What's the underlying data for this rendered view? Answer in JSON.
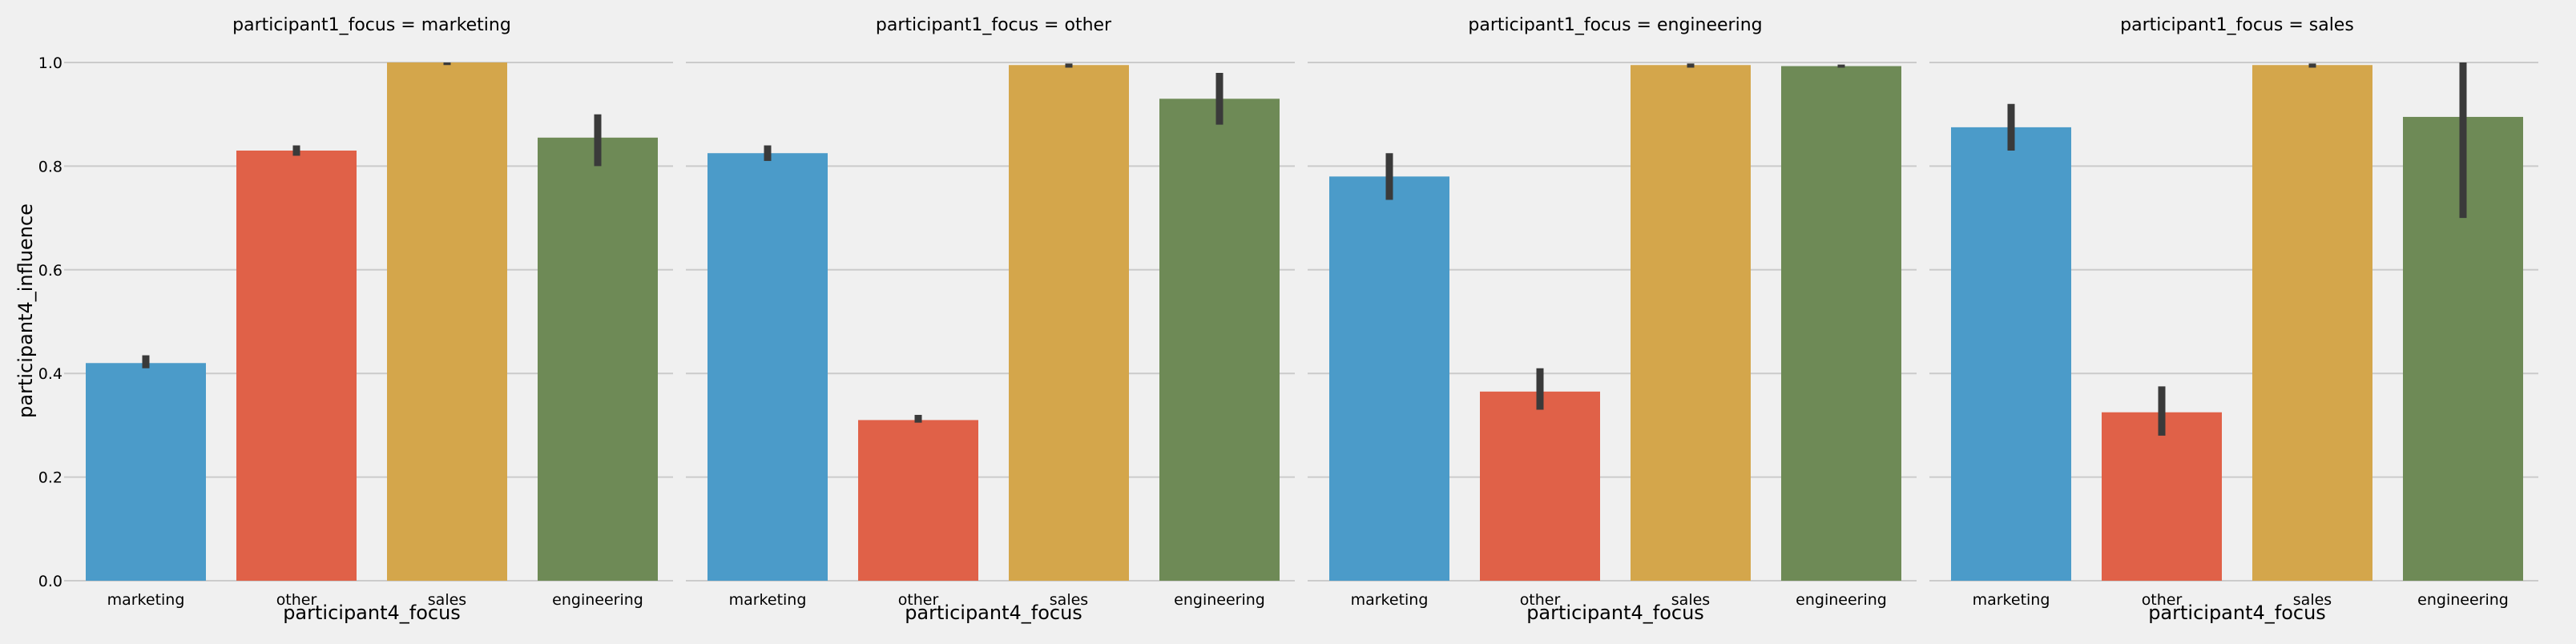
{
  "figure": {
    "ylabel": "participant4_influence",
    "xlabel": "participant4_focus"
  },
  "colors": {
    "background": "#f0f0f0",
    "grid": "#cbcbcb",
    "errorbar": "#3a3a3a",
    "marketing": "#4b9bc9",
    "other": "#e06148",
    "sales": "#d4a64b",
    "engineering": "#6e8a56"
  },
  "chart_data": [
    {
      "type": "bar",
      "title": "participant1_focus = marketing",
      "xlabel": "participant4_focus",
      "ylabel": "participant4_influence",
      "categories": [
        "marketing",
        "other",
        "sales",
        "engineering"
      ],
      "values": [
        0.42,
        0.83,
        1.0,
        0.855
      ],
      "ci": [
        [
          0.41,
          0.435
        ],
        [
          0.82,
          0.84
        ],
        [
          0.995,
          1.0
        ],
        [
          0.8,
          0.9
        ]
      ],
      "ylim": [
        0,
        1.0
      ],
      "yticks": [
        "0.0",
        "0.2",
        "0.4",
        "0.6",
        "0.8",
        "1.0"
      ],
      "grid": true
    },
    {
      "type": "bar",
      "title": "participant1_focus = other",
      "xlabel": "participant4_focus",
      "ylabel": "",
      "categories": [
        "marketing",
        "other",
        "sales",
        "engineering"
      ],
      "values": [
        0.825,
        0.31,
        0.995,
        0.93
      ],
      "ci": [
        [
          0.81,
          0.84
        ],
        [
          0.305,
          0.32
        ],
        [
          0.99,
          0.998
        ],
        [
          0.88,
          0.98
        ]
      ],
      "ylim": [
        0,
        1.0
      ],
      "yticks": [],
      "grid": true
    },
    {
      "type": "bar",
      "title": "participant1_focus = engineering",
      "xlabel": "participant4_focus",
      "ylabel": "",
      "categories": [
        "marketing",
        "other",
        "sales",
        "engineering"
      ],
      "values": [
        0.78,
        0.365,
        0.995,
        0.993
      ],
      "ci": [
        [
          0.735,
          0.825
        ],
        [
          0.33,
          0.41
        ],
        [
          0.99,
          0.998
        ],
        [
          0.99,
          0.996
        ]
      ],
      "ylim": [
        0,
        1.0
      ],
      "yticks": [],
      "grid": true
    },
    {
      "type": "bar",
      "title": "participant1_focus = sales",
      "xlabel": "participant4_focus",
      "ylabel": "",
      "categories": [
        "marketing",
        "other",
        "sales",
        "engineering"
      ],
      "values": [
        0.875,
        0.325,
        0.995,
        0.895
      ],
      "ci": [
        [
          0.83,
          0.92
        ],
        [
          0.28,
          0.375
        ],
        [
          0.99,
          0.998
        ],
        [
          0.7,
          1.0
        ]
      ],
      "ylim": [
        0,
        1.0
      ],
      "yticks": [],
      "grid": true
    }
  ]
}
